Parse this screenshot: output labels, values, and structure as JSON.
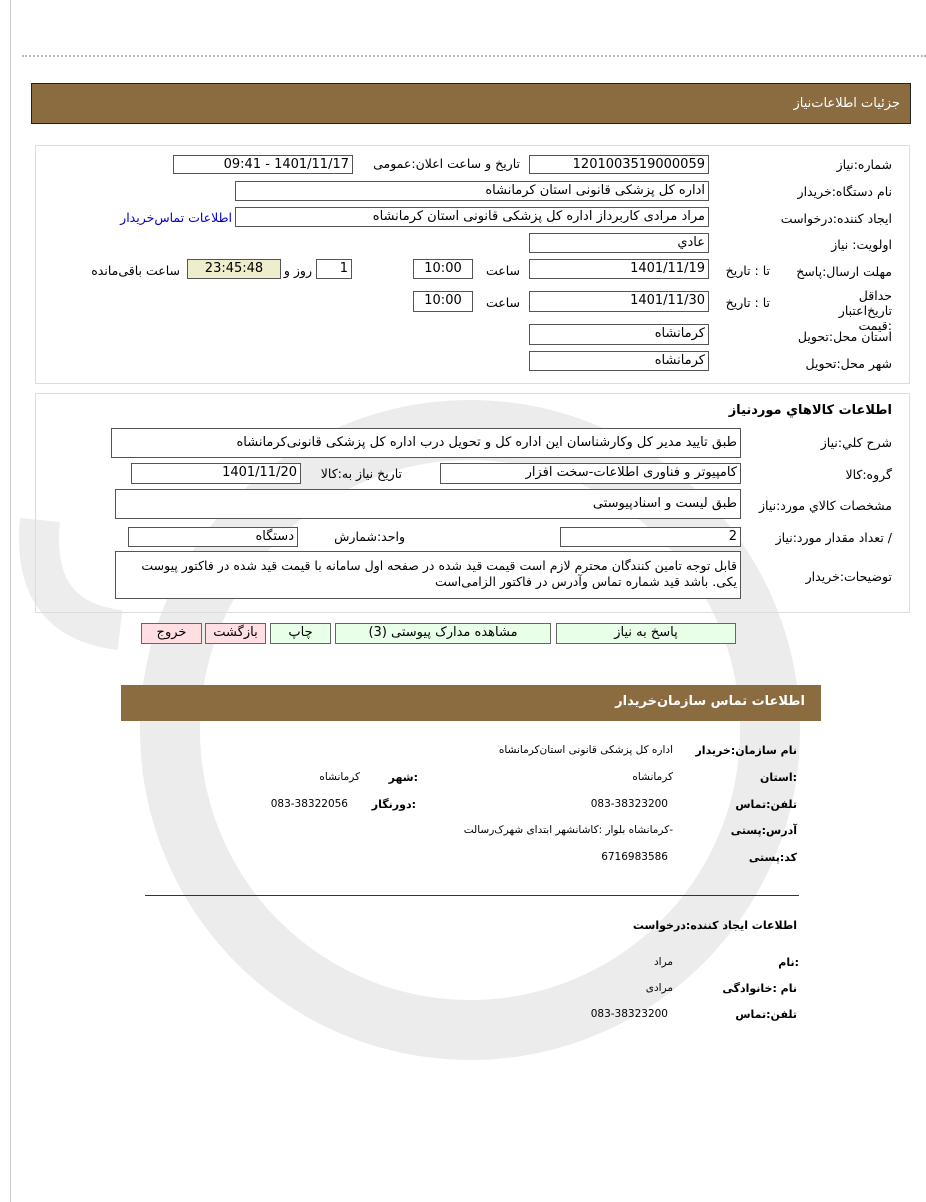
{
  "header": {
    "title": "جزئیات   اطلاعات‌نیاز"
  },
  "need": {
    "number_label": "شماره:نیاز",
    "number": "1201003519000059",
    "announce_label": "تاریخ و ساعت اعلان:عمومی",
    "announce": "1401/11/17 - 09:41",
    "buyer_label": "نام دستگاه:خریدار",
    "buyer": "اداره کل پزشکی قانونی استان کرمانشاه",
    "creator_label": "ایجاد کننده:درخواست",
    "creator": "مراد مرادی کاربرداز اداره کل پزشکی قانونی استان کرمانشاه",
    "contact_link": "اطلاعات تماس‌خریدار",
    "priority_label": "اولویت: نیاز",
    "priority": "عادي",
    "deadline_label": "مهلت ارسال:پاسخ",
    "to_date_label": "تا : تاریخ",
    "deadline_date": "1401/11/19",
    "time_label": "ساعت",
    "deadline_time": "10:00",
    "days": "1",
    "days_label": "روز و",
    "remaining": "23:45:48",
    "remaining_label": "ساعت باقی‌مانده",
    "validity_label": "حداقل تاریخ‌اعتبار :قیمت",
    "validity_date": "1401/11/30",
    "validity_time": "10:00",
    "province_label": "استان محل:تحویل",
    "province": "کرمانشاه",
    "city_label": "شهر محل:تحویل",
    "city": "کرمانشاه"
  },
  "goods": {
    "title": "اطلاعات کالاهاي موردنیاز",
    "desc_label": "شرح کلي:نیاز",
    "desc": "طبق تایید مدیر کل وکارشناسان این اداره کل و تحویل درب اداره کل پزشکی قانونی‌کرمانشاه",
    "group_label": "گروه:کالا",
    "group": "کامپیوتر و فناوری اطلاعات-سخت افزار",
    "need_date_label": "تاریخ نیاز به:کالا",
    "need_date": "1401/11/20",
    "spec_label": "مشخصات کالاي مورد:نیاز",
    "spec": "طبق لیست و اسنادپیوستی",
    "qty_label": "/ تعداد مقدار مورد:نیاز",
    "qty": "2",
    "unit_label": "واحد:شمارش",
    "unit": "دستگاه",
    "notes_label": "توضیحات:خریدار",
    "notes": "قابل توجه تامین کنندگان محترم لازم است قیمت قید شده در صفحه اول سامانه با قیمت قید شده در فاکتور پیوست یکی. باشد قید شماره تماس وآدرس در فاکتور الزامی‌است"
  },
  "buttons": {
    "reply": "پاسخ به نیاز",
    "attachments": "مشاهده مدارک پیوستی (3)",
    "print": "چاپ",
    "back": "بازگشت",
    "exit": "خروج"
  },
  "contact": {
    "title": "اطلاعات  تماس سازمان‌خریدار",
    "org_label": "نام سازمان:خریدار",
    "org": "اداره کل پزشکی قانونی استان‌کرمانشاه",
    "province_label": ":استان",
    "province": "کرمانشاه",
    "city_label": ":شهر",
    "city": "کرمانشاه",
    "phone_label": "تلفن:تماس",
    "phone": "083-38323200",
    "fax_label": ":دورنگار",
    "fax": "083-38322056",
    "address_label": "آدرس:پستی",
    "address": "-کرمانشاه بلوار :کاشانشهر ابتدای شهرک‌رسالت",
    "postal_label": "کد:پستی",
    "postal": "6716983586",
    "creator_title": "اطلاعات ایجاد کننده:درخواست",
    "first_name_label": ":نام",
    "first_name": "مراد",
    "last_name_label": "نام :خانوادگی",
    "last_name": "مرادی",
    "creator_phone_label": "تلفن:تماس",
    "creator_phone": "083-38323200"
  },
  "colors": {
    "header": "#8b6b40",
    "timer_bg": "#eeeecc",
    "link": "#0000cc",
    "green_btn": "#e8ffe8",
    "pink_btn": "#ffdfe2"
  }
}
